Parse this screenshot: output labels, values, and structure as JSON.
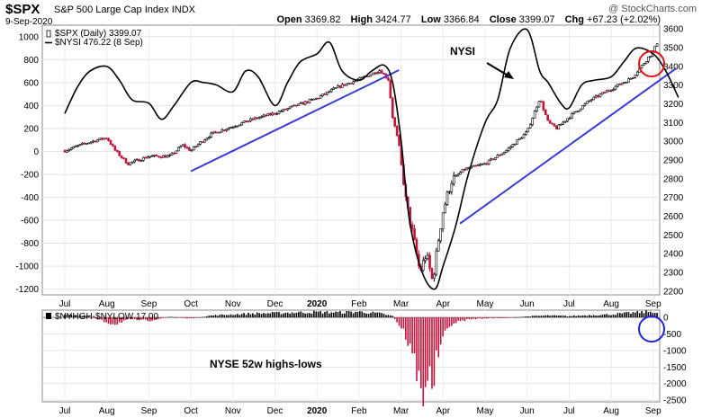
{
  "header": {
    "symbol": "$SPX",
    "description": "S&P 500 Large Cap Index",
    "exchange": "INDX",
    "date": "9-Sep-2020",
    "open_label": "Open",
    "open": "3369.82",
    "high_label": "High",
    "high": "3424.77",
    "low_label": "Low",
    "low": "3366.84",
    "close_label": "Close",
    "close": "3399.07",
    "chg_label": "Chg",
    "chg": "+67.23 (+2.02%)",
    "watermark": "@ StockCharts.com"
  },
  "colors": {
    "up_candle": "#000000",
    "down_candle": "#c0143c",
    "nysi_line": "#000000",
    "trend_line": "#3a3ad6",
    "highlight_red": "#e01010",
    "highlight_blue": "#2222dd",
    "bar_positive": "#000000",
    "bar_negative": "#c0143c"
  },
  "chart_data": [
    {
      "type": "line",
      "panel": "main",
      "legend": [
        {
          "name": "$SPX (Daily) 3399.07",
          "color": "#000000",
          "marker": "candle"
        },
        {
          "name": "$NYSI 476.22 (8 Sep)",
          "color": "#000000",
          "marker": "line"
        }
      ],
      "x_labels": [
        "Jul",
        "Aug",
        "Sep",
        "Oct",
        "Nov",
        "Dec",
        "2020",
        "Feb",
        "Mar",
        "Apr",
        "May",
        "Jun",
        "Jul",
        "Aug",
        "Sep"
      ],
      "left_axis": {
        "ticks": [
          -1200,
          -1000,
          -800,
          -600,
          -400,
          -200,
          0,
          200,
          400,
          600,
          800,
          1000
        ],
        "ylim": [
          -1250,
          1100
        ]
      },
      "right_axis": {
        "ticks": [
          2200,
          2300,
          2400,
          2500,
          2600,
          2700,
          2800,
          2900,
          3000,
          3100,
          3200,
          3300,
          3400,
          3500,
          3600
        ],
        "ylim": [
          2180,
          3620
        ]
      },
      "series": [
        {
          "name": "$SPX (Daily) 3399.07",
          "axis": "right",
          "x_month": [
            0.0,
            0.5,
            1.0,
            1.2,
            1.5,
            2.0,
            2.5,
            2.8,
            3.0,
            3.2,
            3.5,
            4.0,
            4.5,
            5.0,
            5.5,
            6.0,
            6.5,
            7.0,
            7.5,
            7.7,
            7.8,
            7.95,
            8.1,
            8.3,
            8.45,
            8.6,
            8.75,
            8.9,
            9.0,
            9.2,
            9.5,
            10.0,
            10.5,
            11.0,
            11.3,
            11.5,
            11.7,
            12.0,
            12.5,
            13.0,
            13.5,
            14.0,
            14.2,
            14.4,
            14.6
          ],
          "values": [
            2950,
            2990,
            3020,
            2950,
            2880,
            2920,
            2920,
            2980,
            2950,
            2990,
            3040,
            3080,
            3120,
            3150,
            3190,
            3230,
            3290,
            3330,
            3380,
            3330,
            3130,
            2980,
            2700,
            2480,
            2300,
            2400,
            2250,
            2490,
            2630,
            2790,
            2850,
            2880,
            2950,
            3050,
            3230,
            3100,
            3070,
            3130,
            3220,
            3280,
            3340,
            3480,
            3580,
            3330,
            3399
          ]
        },
        {
          "name": "$NYSI 476.22 (8 Sep)",
          "axis": "left",
          "x_month": [
            0.0,
            0.3,
            0.6,
            1.0,
            1.3,
            1.6,
            2.0,
            2.3,
            2.6,
            3.0,
            3.3,
            3.6,
            4.0,
            4.3,
            4.6,
            5.0,
            5.3,
            5.6,
            6.0,
            6.3,
            6.6,
            7.0,
            7.3,
            7.6,
            7.8,
            8.0,
            8.2,
            8.5,
            8.8,
            9.0,
            9.3,
            9.6,
            10.0,
            10.3,
            10.6,
            11.0,
            11.3,
            11.5,
            11.8,
            12.0,
            12.3,
            12.6,
            13.0,
            13.3,
            13.6,
            14.0,
            14.3,
            14.6
          ],
          "values": [
            330,
            560,
            700,
            740,
            620,
            450,
            420,
            280,
            400,
            600,
            600,
            580,
            520,
            700,
            650,
            400,
            600,
            780,
            850,
            950,
            700,
            620,
            700,
            750,
            600,
            100,
            -600,
            -1050,
            -1200,
            -1000,
            -650,
            -200,
            250,
            450,
            900,
            1060,
            700,
            600,
            420,
            380,
            580,
            620,
            650,
            780,
            900,
            850,
            700,
            470
          ]
        }
      ],
      "trendlines": [
        {
          "x_month": [
            3.0,
            7.95
          ],
          "values": [
            2840,
            3380
          ],
          "axis": "right"
        },
        {
          "x_month": [
            9.4,
            14.55
          ],
          "values": [
            2560,
            3390
          ],
          "axis": "right"
        }
      ],
      "annotations": [
        {
          "text": "NYSI",
          "type": "label_with_arrow"
        },
        {
          "type": "circle",
          "color": "#e01010",
          "note": "highlight at latest SPX vs NYSI divergence"
        }
      ]
    },
    {
      "type": "bar",
      "panel": "lower",
      "legend": [
        {
          "name": "$NYHGH-$NYLOW 17.00",
          "color": "#000000"
        }
      ],
      "x_labels": [
        "Jul",
        "Aug",
        "Sep",
        "Oct",
        "Nov",
        "Dec",
        "2020",
        "Feb",
        "Mar",
        "Apr",
        "May",
        "Jun",
        "Jul",
        "Aug",
        "Sep"
      ],
      "y_axis": {
        "ticks": [
          -2500,
          -2000,
          -1500,
          -1000,
          -500,
          0
        ],
        "ylim": [
          -2550,
          220
        ]
      },
      "x_month": [
        0.0,
        0.5,
        1.0,
        1.2,
        1.5,
        2.0,
        2.5,
        3.0,
        3.5,
        4.0,
        4.5,
        5.0,
        5.5,
        6.0,
        6.5,
        7.0,
        7.5,
        7.8,
        8.0,
        8.1,
        8.2,
        8.3,
        8.4,
        8.45,
        8.5,
        8.55,
        8.6,
        8.65,
        8.7,
        8.8,
        8.9,
        9.0,
        9.1,
        9.2,
        9.4,
        9.6,
        10.0,
        10.5,
        11.0,
        11.5,
        12.0,
        12.5,
        13.0,
        13.5,
        14.0,
        14.3,
        14.6
      ],
      "values": [
        80,
        60,
        -150,
        -200,
        -60,
        -100,
        20,
        -40,
        60,
        90,
        120,
        130,
        150,
        160,
        150,
        170,
        120,
        40,
        -300,
        -500,
        -900,
        -1300,
        -1700,
        -2200,
        -2450,
        -2000,
        -1800,
        -1600,
        -2100,
        -1700,
        -1000,
        -700,
        -400,
        -200,
        -120,
        -60,
        -30,
        -20,
        30,
        60,
        40,
        70,
        90,
        140,
        180,
        40,
        17
      ],
      "annotations": [
        {
          "text": "NYSE 52w highs-lows",
          "type": "label"
        },
        {
          "type": "circle",
          "color": "#2222dd",
          "note": "highlight at latest reading"
        }
      ]
    }
  ]
}
